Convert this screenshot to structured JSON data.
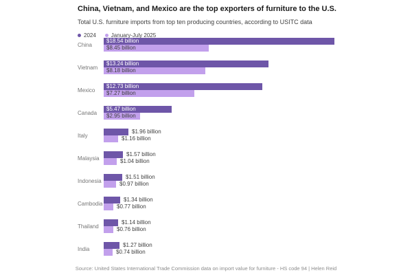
{
  "header": {
    "title": "China, Vietnam, and Mexico are the top exporters of furniture to the U.S.",
    "subtitle": "Total U.S. furniture imports from top ten producing countries, according to USITC data"
  },
  "legend": [
    {
      "label": "2024",
      "color": "#6e56a8"
    },
    {
      "label": "January-July 2025",
      "color": "#c2a0ec"
    }
  ],
  "chart_data": {
    "type": "bar",
    "orientation": "horizontal",
    "title": "China, Vietnam, and Mexico are the top exporters of furniture to the U.S.",
    "subtitle": "Total U.S. furniture imports from top ten producing countries, according to USITC data",
    "unit": "billion USD",
    "xlim": [
      0,
      18.54
    ],
    "grid": false,
    "legend_position": "top-left",
    "categories": [
      "China",
      "Vietnam",
      "Mexico",
      "Canada",
      "Italy",
      "Malaysia",
      "Indonesia",
      "Cambodia",
      "Thailand",
      "India"
    ],
    "series": [
      {
        "name": "2024",
        "color": "#6e56a8",
        "values": [
          18.54,
          13.24,
          12.73,
          5.47,
          1.96,
          1.57,
          1.51,
          1.34,
          1.14,
          1.27
        ],
        "labels": [
          "$18.54 billion",
          "$13.24 billion",
          "$12.73 billion",
          "$5.47 billion",
          "$1.96 billion",
          "$1.57 billion",
          "$1.51 billion",
          "$1.34 billion",
          "$1.14 billion",
          "$1.27 billion"
        ]
      },
      {
        "name": "January-July 2025",
        "color": "#c2a0ec",
        "values": [
          8.45,
          8.18,
          7.27,
          2.95,
          1.16,
          1.04,
          0.97,
          0.77,
          0.76,
          0.74
        ],
        "labels": [
          "$8.45 billion",
          "$8.18 billion",
          "$7.27 billion",
          "$2.95 billion",
          "$1.16 billion",
          "$1.04 billion",
          "$0.97 billion",
          "$0.77 billion",
          "$0.76 billion",
          "$0.74 billion"
        ]
      }
    ]
  },
  "footer": {
    "source": "Source: United States International Trade Commission data on import value for furniture - HS code 94 | Helen Reid"
  }
}
